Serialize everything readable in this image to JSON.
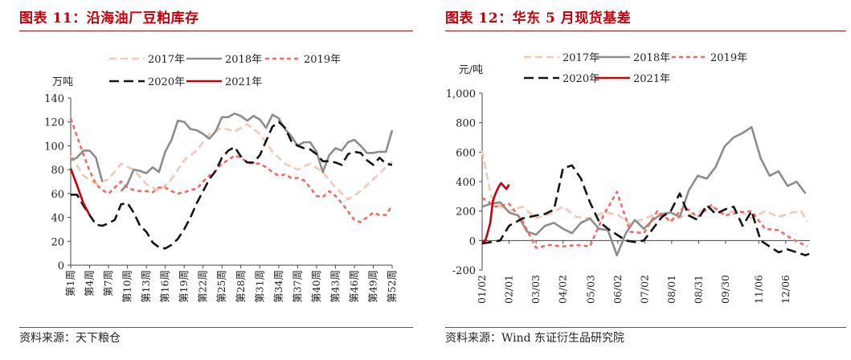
{
  "left": {
    "title": "图表 11：沿海油厂豆粕库存",
    "source": "资料来源：天下粮仓",
    "chart_data": {
      "type": "line",
      "ylabel": "万吨",
      "ylim": [
        0,
        140
      ],
      "yticks": [
        0,
        20,
        40,
        60,
        80,
        100,
        120,
        140
      ],
      "xlim": [
        1,
        52
      ],
      "xticks": [
        "第1周",
        "第4周",
        "第7周",
        "第10周",
        "第13周",
        "第16周",
        "第19周",
        "第22周",
        "第25周",
        "第28周",
        "第31周",
        "第34周",
        "第37周",
        "第40周",
        "第43周",
        "第46周",
        "第49周",
        "第52周"
      ],
      "xtick_weeks": [
        1,
        4,
        7,
        10,
        13,
        16,
        19,
        22,
        25,
        28,
        31,
        34,
        37,
        40,
        43,
        46,
        49,
        52
      ],
      "legend_position": "top",
      "series": [
        {
          "name": "2017年",
          "color": "#f7c7b3",
          "dash": "long",
          "x": [
            1,
            3,
            5,
            7,
            9,
            11,
            13,
            15,
            17,
            19,
            21,
            23,
            25,
            27,
            29,
            31,
            33,
            35,
            37,
            39,
            41,
            43,
            45,
            47,
            49,
            51,
            52
          ],
          "y": [
            92,
            75,
            68,
            72,
            85,
            80,
            68,
            62,
            72,
            88,
            96,
            110,
            115,
            112,
            118,
            110,
            95,
            85,
            80,
            85,
            78,
            65,
            55,
            62,
            72,
            82,
            87
          ]
        },
        {
          "name": "2018年",
          "color": "#8c8c8c",
          "dash": "solid",
          "x": [
            1,
            2,
            3,
            4,
            5,
            6,
            7,
            8,
            9,
            10,
            11,
            12,
            13,
            14,
            15,
            16,
            17,
            18,
            19,
            20,
            21,
            22,
            23,
            24,
            25,
            26,
            27,
            28,
            29,
            30,
            31,
            32,
            33,
            34,
            35,
            36,
            37,
            38,
            39,
            40,
            41,
            42,
            43,
            44,
            45,
            46,
            47,
            48,
            49,
            50,
            51,
            52
          ],
          "y": [
            88,
            90,
            96,
            96,
            90,
            70,
            null,
            null,
            62,
            68,
            80,
            79,
            77,
            82,
            78,
            95,
            105,
            121,
            120,
            114,
            113,
            110,
            106,
            112,
            124,
            124,
            127,
            125,
            121,
            125,
            122,
            115,
            126,
            123,
            114,
            108,
            100,
            103,
            103,
            95,
            78,
            92,
            98,
            96,
            103,
            105,
            100,
            94,
            94,
            95,
            95,
            113
          ]
        },
        {
          "name": "2019年",
          "color": "#f26a64",
          "dash": "dash",
          "x": [
            1,
            2,
            3,
            4,
            5,
            6,
            7,
            8,
            9,
            10,
            11,
            12,
            13,
            14,
            15,
            16,
            17,
            18,
            19,
            20,
            21,
            22,
            23,
            24,
            25,
            26,
            27,
            28,
            29,
            30,
            31,
            32,
            33,
            34,
            35,
            36,
            37,
            38,
            39,
            40,
            41,
            42,
            43,
            44,
            45,
            46,
            47,
            48,
            49,
            50,
            51,
            52
          ],
          "y": [
            123,
            108,
            93,
            79,
            68,
            63,
            60,
            65,
            70,
            65,
            63,
            62,
            62,
            61,
            65,
            65,
            62,
            60,
            61,
            63,
            64,
            70,
            75,
            79,
            85,
            88,
            92,
            90,
            86,
            85,
            85,
            82,
            78,
            75,
            76,
            73,
            73,
            71,
            65,
            58,
            57,
            62,
            58,
            52,
            45,
            38,
            36,
            40,
            44,
            42,
            42,
            50
          ]
        },
        {
          "name": "2020年",
          "color": "#141414",
          "dash": "longdash",
          "x": [
            1,
            2,
            3,
            4,
            5,
            6,
            7,
            8,
            9,
            10,
            11,
            12,
            13,
            14,
            15,
            16,
            17,
            18,
            19,
            20,
            21,
            22,
            23,
            24,
            25,
            26,
            27,
            28,
            29,
            30,
            31,
            32,
            33,
            34,
            35,
            36,
            37,
            38,
            39,
            40,
            41,
            42,
            43,
            44,
            45,
            46,
            47,
            48,
            49,
            50,
            51,
            52
          ],
          "y": [
            59,
            59,
            50,
            42,
            34,
            33,
            35,
            38,
            51,
            52,
            44,
            33,
            28,
            19,
            15,
            14,
            17,
            22,
            30,
            40,
            52,
            62,
            72,
            79,
            90,
            96,
            99,
            91,
            86,
            86,
            92,
            104,
            116,
            120,
            115,
            104,
            100,
            98,
            97,
            93,
            87,
            87,
            86,
            84,
            93,
            95,
            94,
            88,
            84,
            90,
            85,
            84
          ]
        },
        {
          "name": "2021年",
          "color": "#c8000a",
          "dash": "solid",
          "x": [
            1,
            2,
            3,
            4
          ],
          "y": [
            81,
            67,
            52,
            42
          ]
        }
      ]
    }
  },
  "right": {
    "title": "图表 12：华东 5 月现货基差",
    "source": "资料来源：Wind 东证衍生品研究院",
    "chart_data": {
      "type": "line",
      "ylabel": "元/吨",
      "ylim": [
        -200,
        1000
      ],
      "yticks": [
        "-200",
        "0",
        "200",
        "400",
        "600",
        "800",
        "1,000"
      ],
      "ytick_values": [
        -200,
        0,
        200,
        400,
        600,
        800,
        1000
      ],
      "xticks": [
        "01/02",
        "02/01",
        "03/03",
        "04/02",
        "05/03",
        "06/02",
        "07/02",
        "08/01",
        "08/31",
        "09/30",
        "11/06",
        "12/06"
      ],
      "xtick_days": [
        0,
        30,
        60,
        90,
        121,
        151,
        181,
        211,
        241,
        271,
        308,
        338
      ],
      "xlim": [
        0,
        365
      ],
      "legend_position": "top",
      "series": [
        {
          "name": "2017年",
          "color": "#f7c7b3",
          "dash": "long",
          "x": [
            0,
            10,
            20,
            30,
            45,
            60,
            75,
            90,
            105,
            120,
            135,
            150,
            165,
            180,
            195,
            210,
            225,
            240,
            255,
            270,
            285,
            300,
            315,
            330,
            345,
            355,
            362
          ],
          "y": [
            610,
            300,
            230,
            200,
            230,
            150,
            180,
            230,
            160,
            150,
            190,
            180,
            110,
            150,
            180,
            130,
            170,
            190,
            230,
            180,
            210,
            150,
            200,
            160,
            190,
            200,
            130
          ]
        },
        {
          "name": "2018年",
          "color": "#8c8c8c",
          "dash": "solid",
          "x": [
            0,
            10,
            20,
            30,
            40,
            50,
            60,
            70,
            80,
            90,
            100,
            110,
            120,
            130,
            140,
            150,
            160,
            170,
            180,
            190,
            200,
            210,
            220,
            230,
            240,
            250,
            260,
            270,
            280,
            290,
            300,
            310,
            320,
            330,
            340,
            350,
            360
          ],
          "y": [
            230,
            250,
            260,
            190,
            170,
            60,
            40,
            100,
            120,
            80,
            50,
            120,
            150,
            80,
            70,
            -100,
            50,
            140,
            80,
            140,
            180,
            190,
            160,
            340,
            440,
            420,
            500,
            640,
            700,
            730,
            770,
            560,
            440,
            470,
            370,
            400,
            320
          ]
        },
        {
          "name": "2019年",
          "color": "#f26a64",
          "dash": "dash",
          "x": [
            0,
            15,
            30,
            45,
            60,
            75,
            90,
            105,
            120,
            135,
            150,
            165,
            180,
            195,
            210,
            225,
            240,
            255,
            270,
            285,
            300,
            315,
            330,
            345,
            355,
            362
          ],
          "y": [
            290,
            230,
            250,
            130,
            -50,
            -30,
            -40,
            -30,
            -40,
            170,
            330,
            60,
            50,
            200,
            130,
            230,
            160,
            240,
            170,
            190,
            200,
            80,
            70,
            10,
            -20,
            -40
          ]
        },
        {
          "name": "2020年",
          "color": "#141414",
          "dash": "longdash",
          "x": [
            0,
            10,
            20,
            30,
            45,
            60,
            70,
            80,
            90,
            100,
            110,
            120,
            130,
            140,
            150,
            160,
            170,
            180,
            190,
            200,
            210,
            220,
            230,
            240,
            250,
            260,
            270,
            280,
            290,
            300,
            310,
            320,
            330,
            340,
            350,
            360,
            364
          ],
          "y": [
            -20,
            -10,
            0,
            100,
            150,
            170,
            180,
            210,
            490,
            510,
            420,
            260,
            130,
            80,
            40,
            0,
            -10,
            0,
            80,
            160,
            200,
            320,
            170,
            140,
            240,
            180,
            210,
            230,
            100,
            200,
            0,
            -40,
            -80,
            -60,
            -80,
            -100,
            -90
          ]
        },
        {
          "name": "2021年",
          "color": "#c8000a",
          "dash": "solid",
          "x": [
            0,
            3,
            6,
            9,
            12,
            15,
            18,
            21,
            24,
            27,
            30
          ],
          "y": [
            0,
            -10,
            50,
            120,
            270,
            320,
            360,
            390,
            370,
            350,
            380
          ]
        }
      ]
    }
  }
}
